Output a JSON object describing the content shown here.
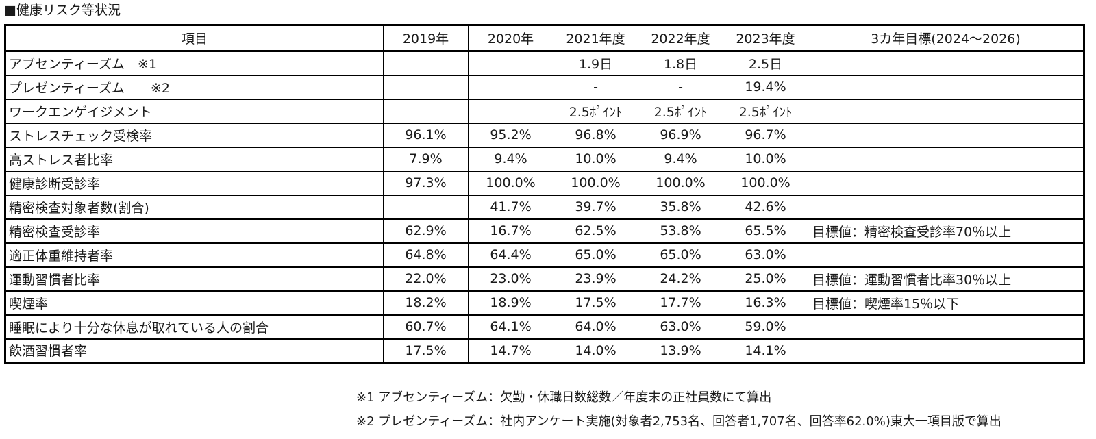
{
  "title": "■健康リスク等状況",
  "table": {
    "headers": [
      "項目",
      "2019年",
      "2020年",
      "2021年度",
      "2022年度",
      "2023年度",
      "3カ年目標(2024～2026)"
    ],
    "rows": [
      {
        "item": "アブセンティーズム　※1",
        "y2019": "",
        "y2020": "",
        "y2021": "1.9日",
        "y2022": "1.8日",
        "y2023": "2.5日",
        "target": ""
      },
      {
        "item": "プレゼンティーズム　　※2",
        "y2019": "",
        "y2020": "",
        "y2021": "-",
        "y2022": "-",
        "y2023": "19.4%",
        "target": ""
      },
      {
        "item": "ワークエンゲイジメント",
        "y2019": "",
        "y2020": "",
        "y2021": "2.5ﾎﾟｲﾝﾄ",
        "y2022": "2.5ﾎﾟｲﾝﾄ",
        "y2023": "2.5ﾎﾟｲﾝﾄ",
        "target": ""
      },
      {
        "item": "ストレスチェック受検率",
        "y2019": "96.1%",
        "y2020": "95.2%",
        "y2021": "96.8%",
        "y2022": "96.9%",
        "y2023": "96.7%",
        "target": ""
      },
      {
        "item": "高ストレス者比率",
        "y2019": "7.9%",
        "y2020": "9.4%",
        "y2021": "10.0%",
        "y2022": "9.4%",
        "y2023": "10.0%",
        "target": ""
      },
      {
        "item": "健康診断受診率",
        "y2019": "97.3%",
        "y2020": "100.0%",
        "y2021": "100.0%",
        "y2022": "100.0%",
        "y2023": "100.0%",
        "target": ""
      },
      {
        "item": "精密検査対象者数(割合)",
        "y2019": "",
        "y2020": "41.7%",
        "y2021": "39.7%",
        "y2022": "35.8%",
        "y2023": "42.6%",
        "target": ""
      },
      {
        "item": "精密検査受診率",
        "y2019": "62.9%",
        "y2020": "16.7%",
        "y2021": "62.5%",
        "y2022": "53.8%",
        "y2023": "65.5%",
        "target": "目標値：精密検査受診率70％以上"
      },
      {
        "item": "適正体重維持者率",
        "y2019": "64.8%",
        "y2020": "64.4%",
        "y2021": "65.0%",
        "y2022": "65.0%",
        "y2023": "63.0%",
        "target": ""
      },
      {
        "item": "運動習慣者比率",
        "y2019": "22.0%",
        "y2020": "23.0%",
        "y2021": "23.9%",
        "y2022": "24.2%",
        "y2023": "25.0%",
        "target": "目標値：運動習慣者比率30％以上"
      },
      {
        "item": "喫煙率",
        "y2019": "18.2%",
        "y2020": "18.9%",
        "y2021": "17.5%",
        "y2022": "17.7%",
        "y2023": "16.3%",
        "target": "目標値：喫煙率15％以下"
      },
      {
        "item": "睡眠により十分な休息が取れている人の割合",
        "y2019": "60.7%",
        "y2020": "64.1%",
        "y2021": "64.0%",
        "y2022": "63.0%",
        "y2023": "59.0%",
        "target": ""
      },
      {
        "item": "飲酒習慣者率",
        "y2019": "17.5%",
        "y2020": "14.7%",
        "y2021": "14.0%",
        "y2022": "13.9%",
        "y2023": "14.1%",
        "target": ""
      }
    ]
  },
  "notes": [
    "※1 アブセンティーズム：欠勤・休職日数総数／年度末の正社員数にて算出",
    "※2 プレゼンティーズム：社内アンケート実施(対象者2,753名、回答者1,707名、回答率62.0%)東大一項目版で算出"
  ]
}
